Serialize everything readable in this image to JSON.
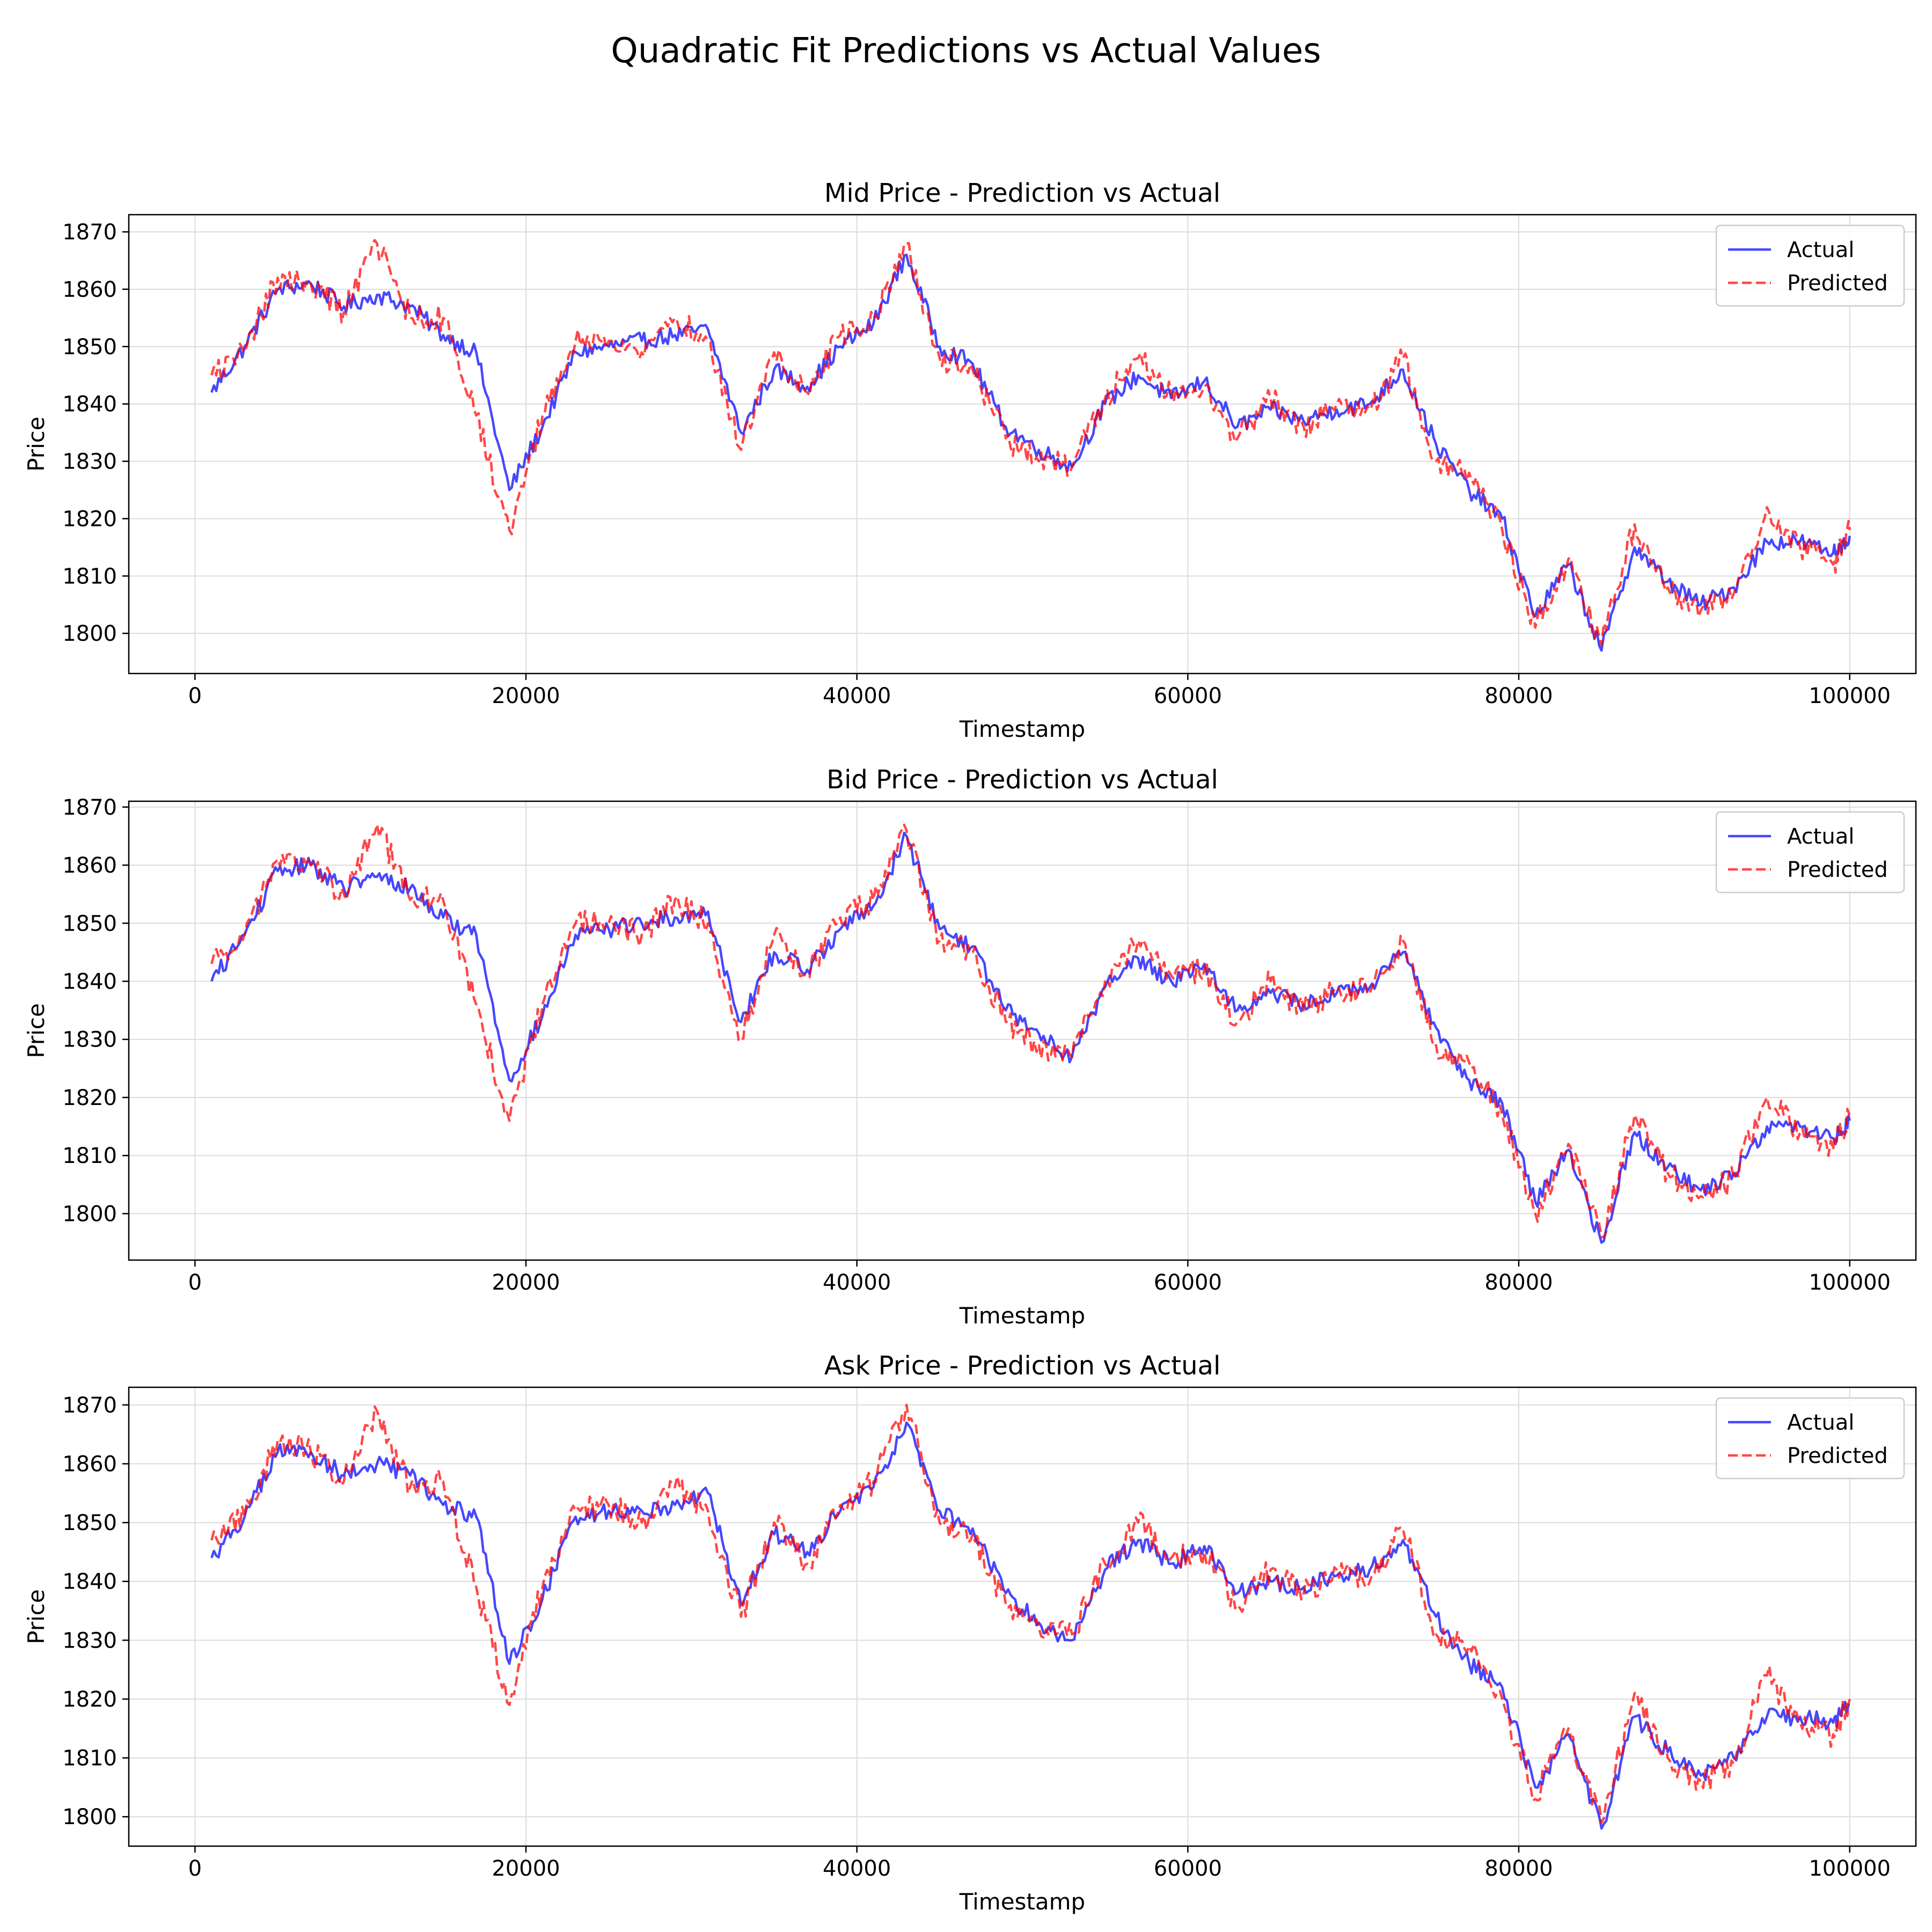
{
  "figure": {
    "title": "Quadratic Fit Predictions vs Actual Values"
  },
  "colors": {
    "actual": "#0000ff",
    "predicted": "#ff0000",
    "grid": "#dcdcdc",
    "axis": "#000000"
  },
  "chart_data": [
    {
      "type": "line",
      "title": "Mid Price - Prediction vs Actual",
      "xlabel": "Timestamp",
      "ylabel": "Price",
      "xlim": [
        -4000,
        104000
      ],
      "ylim": [
        1793,
        1873
      ],
      "xticks": [
        0,
        20000,
        40000,
        60000,
        80000,
        100000
      ],
      "yticks": [
        1800,
        1810,
        1820,
        1830,
        1840,
        1850,
        1860,
        1870
      ],
      "grid": true,
      "legend": "top-right",
      "x": [
        1000,
        3000,
        5000,
        7000,
        9000,
        11000,
        13000,
        15000,
        17000,
        19000,
        21000,
        23000,
        25000,
        27000,
        29000,
        31000,
        33000,
        35000,
        37000,
        39000,
        41000,
        43000,
        45000,
        47000,
        49000,
        51000,
        53000,
        55000,
        57000,
        59000,
        61000,
        63000,
        65000,
        67000,
        69000,
        71000,
        73000,
        75000,
        77000,
        79000,
        81000,
        83000,
        85000,
        87000,
        89000,
        91000,
        93000,
        95000,
        97000,
        99000,
        100000
      ],
      "series": [
        {
          "name": "Actual",
          "values": [
            1842,
            1850,
            1860,
            1861,
            1857,
            1859,
            1857,
            1852,
            1849,
            1825,
            1836,
            1849,
            1850,
            1851,
            1852,
            1853,
            1835,
            1846,
            1843,
            1850,
            1854,
            1866,
            1850,
            1847,
            1836,
            1832,
            1829,
            1840,
            1845,
            1841,
            1844,
            1836,
            1839,
            1837,
            1839,
            1840,
            1846,
            1833,
            1825,
            1820,
            1803,
            1812,
            1797,
            1815,
            1809,
            1805,
            1808,
            1816,
            1816,
            1814,
            1817
          ]
        },
        {
          "name": "Predicted",
          "values": [
            1845,
            1849,
            1862,
            1861,
            1856,
            1868,
            1855,
            1855,
            1838,
            1818,
            1838,
            1851,
            1851,
            1849,
            1855,
            1851,
            1832,
            1849,
            1842,
            1852,
            1855,
            1868,
            1848,
            1846,
            1834,
            1830,
            1829,
            1841,
            1848,
            1842,
            1843,
            1834,
            1841,
            1836,
            1840,
            1839,
            1848,
            1830,
            1828,
            1818,
            1801,
            1813,
            1798,
            1819,
            1808,
            1804,
            1807,
            1822,
            1815,
            1812,
            1818
          ]
        }
      ]
    },
    {
      "type": "line",
      "title": "Bid Price - Prediction vs Actual",
      "xlabel": "Timestamp",
      "ylabel": "Price",
      "xlim": [
        -4000,
        104000
      ],
      "ylim": [
        1792,
        1871
      ],
      "xticks": [
        0,
        20000,
        40000,
        60000,
        80000,
        100000
      ],
      "yticks": [
        1800,
        1810,
        1820,
        1830,
        1840,
        1850,
        1860,
        1870
      ],
      "grid": true,
      "legend": "top-right",
      "x": [
        1000,
        3000,
        5000,
        7000,
        9000,
        11000,
        13000,
        15000,
        17000,
        19000,
        21000,
        23000,
        25000,
        27000,
        29000,
        31000,
        33000,
        35000,
        37000,
        39000,
        41000,
        43000,
        45000,
        47000,
        49000,
        51000,
        53000,
        55000,
        57000,
        59000,
        61000,
        63000,
        65000,
        67000,
        69000,
        71000,
        73000,
        75000,
        77000,
        79000,
        81000,
        83000,
        85000,
        87000,
        89000,
        91000,
        93000,
        95000,
        97000,
        99000,
        100000
      ],
      "series": [
        {
          "name": "Actual",
          "values": [
            1840,
            1848,
            1859,
            1860,
            1856,
            1858,
            1856,
            1851,
            1848,
            1823,
            1834,
            1848,
            1849,
            1850,
            1851,
            1852,
            1833,
            1845,
            1842,
            1849,
            1853,
            1865,
            1849,
            1846,
            1835,
            1831,
            1827,
            1839,
            1844,
            1840,
            1843,
            1835,
            1838,
            1836,
            1838,
            1839,
            1845,
            1832,
            1823,
            1819,
            1802,
            1811,
            1795,
            1814,
            1808,
            1804,
            1807,
            1815,
            1815,
            1813,
            1816
          ]
        },
        {
          "name": "Predicted",
          "values": [
            1843,
            1848,
            1861,
            1860,
            1855,
            1867,
            1854,
            1854,
            1836,
            1816,
            1836,
            1850,
            1850,
            1848,
            1854,
            1850,
            1830,
            1848,
            1841,
            1851,
            1854,
            1866,
            1847,
            1845,
            1833,
            1829,
            1827,
            1840,
            1847,
            1841,
            1842,
            1833,
            1840,
            1835,
            1839,
            1838,
            1847,
            1829,
            1826,
            1817,
            1800,
            1812,
            1796,
            1817,
            1807,
            1803,
            1806,
            1820,
            1814,
            1811,
            1817
          ]
        }
      ]
    },
    {
      "type": "line",
      "title": "Ask Price - Prediction vs Actual",
      "xlabel": "Timestamp",
      "ylabel": "Price",
      "xlim": [
        -4000,
        104000
      ],
      "ylim": [
        1795,
        1873
      ],
      "xticks": [
        0,
        20000,
        40000,
        60000,
        80000,
        100000
      ],
      "yticks": [
        1800,
        1810,
        1820,
        1830,
        1840,
        1850,
        1860,
        1870
      ],
      "grid": true,
      "legend": "top-right",
      "x": [
        1000,
        3000,
        5000,
        7000,
        9000,
        11000,
        13000,
        15000,
        17000,
        19000,
        21000,
        23000,
        25000,
        27000,
        29000,
        31000,
        33000,
        35000,
        37000,
        39000,
        41000,
        43000,
        45000,
        47000,
        49000,
        51000,
        53000,
        55000,
        57000,
        59000,
        61000,
        63000,
        65000,
        67000,
        69000,
        71000,
        73000,
        75000,
        77000,
        79000,
        81000,
        83000,
        85000,
        87000,
        89000,
        91000,
        93000,
        95000,
        97000,
        99000,
        100000
      ],
      "series": [
        {
          "name": "Actual",
          "values": [
            1844,
            1851,
            1862,
            1862,
            1858,
            1860,
            1858,
            1853,
            1851,
            1826,
            1837,
            1851,
            1852,
            1852,
            1853,
            1855,
            1836,
            1848,
            1845,
            1852,
            1856,
            1867,
            1852,
            1849,
            1838,
            1833,
            1830,
            1842,
            1847,
            1843,
            1846,
            1838,
            1840,
            1839,
            1841,
            1842,
            1847,
            1834,
            1826,
            1822,
            1805,
            1814,
            1798,
            1817,
            1811,
            1807,
            1810,
            1817,
            1817,
            1816,
            1819
          ]
        },
        {
          "name": "Predicted",
          "values": [
            1847,
            1851,
            1864,
            1862,
            1857,
            1869,
            1856,
            1857,
            1839,
            1819,
            1839,
            1852,
            1853,
            1850,
            1856,
            1852,
            1834,
            1850,
            1843,
            1853,
            1857,
            1870,
            1850,
            1848,
            1836,
            1832,
            1831,
            1843,
            1850,
            1844,
            1845,
            1836,
            1842,
            1838,
            1842,
            1840,
            1849,
            1831,
            1829,
            1820,
            1803,
            1815,
            1799,
            1821,
            1810,
            1806,
            1809,
            1824,
            1816,
            1814,
            1820
          ]
        }
      ]
    }
  ]
}
